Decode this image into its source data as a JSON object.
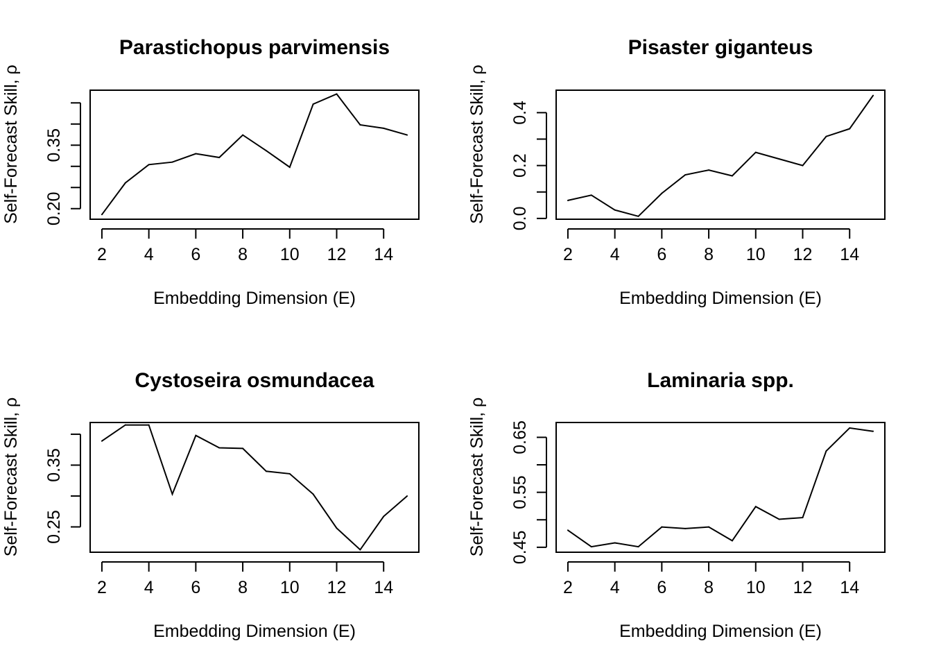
{
  "chart_data": [
    {
      "type": "line",
      "title": "Parastichopus parvimensis",
      "xlabel": "Embedding Dimension (E)",
      "ylabel": "Self-Forecast Skill, ρ",
      "x": [
        2,
        3,
        4,
        5,
        6,
        7,
        8,
        9,
        10,
        11,
        12,
        13,
        14,
        15
      ],
      "y": [
        0.186,
        0.261,
        0.304,
        0.31,
        0.33,
        0.321,
        0.374,
        0.337,
        0.298,
        0.447,
        0.471,
        0.398,
        0.39,
        0.374
      ],
      "xlim": [
        1.5,
        15.5
      ],
      "ylim": [
        0.175,
        0.48
      ],
      "xticks": [
        2,
        4,
        6,
        8,
        10,
        12,
        14
      ],
      "yticks": [
        0.2,
        0.25,
        0.3,
        0.35,
        0.4,
        0.45
      ],
      "ytick_labels": [
        "0.20",
        "",
        "",
        "0.35",
        "",
        ""
      ],
      "xtick_labels": [
        "2",
        "4",
        "6",
        "8",
        "10",
        "12",
        "14"
      ]
    },
    {
      "type": "line",
      "title": "Pisaster giganteus",
      "xlabel": "Embedding Dimension (E)",
      "ylabel": "Self-Forecast Skill, ρ",
      "x": [
        2,
        3,
        4,
        5,
        6,
        7,
        8,
        9,
        10,
        11,
        12,
        13,
        14,
        15
      ],
      "y": [
        0.068,
        0.088,
        0.032,
        0.008,
        0.095,
        0.165,
        0.183,
        0.161,
        0.25,
        0.225,
        0.2,
        0.31,
        0.339,
        0.465
      ],
      "xlim": [
        1.5,
        15.5
      ],
      "ylim": [
        -0.003,
        0.485
      ],
      "xticks": [
        2,
        4,
        6,
        8,
        10,
        12,
        14
      ],
      "yticks": [
        0.0,
        0.1,
        0.2,
        0.3,
        0.4
      ],
      "ytick_labels": [
        "0.0",
        "",
        "0.2",
        "",
        "0.4"
      ],
      "xtick_labels": [
        "2",
        "4",
        "6",
        "8",
        "10",
        "12",
        "14"
      ]
    },
    {
      "type": "line",
      "title": "Cystoseira osmundacea",
      "xlabel": "Embedding Dimension (E)",
      "ylabel": "Self-Forecast Skill, ρ",
      "x": [
        2,
        3,
        4,
        5,
        6,
        7,
        8,
        9,
        10,
        11,
        12,
        13,
        14,
        15
      ],
      "y": [
        0.389,
        0.415,
        0.415,
        0.303,
        0.398,
        0.378,
        0.377,
        0.34,
        0.336,
        0.303,
        0.248,
        0.213,
        0.267,
        0.3
      ],
      "xlim": [
        1.5,
        15.5
      ],
      "ylim": [
        0.209,
        0.419
      ],
      "xticks": [
        2,
        4,
        6,
        8,
        10,
        12,
        14
      ],
      "yticks": [
        0.25,
        0.3,
        0.35,
        0.4
      ],
      "ytick_labels": [
        "0.25",
        "",
        "0.35",
        ""
      ],
      "xtick_labels": [
        "2",
        "4",
        "6",
        "8",
        "10",
        "12",
        "14"
      ]
    },
    {
      "type": "line",
      "title": "Laminaria spp.",
      "xlabel": "Embedding Dimension (E)",
      "ylabel": "Self-Forecast Skill, ρ",
      "x": [
        2,
        3,
        4,
        5,
        6,
        7,
        8,
        9,
        10,
        11,
        12,
        13,
        14,
        15
      ],
      "y": [
        0.481,
        0.451,
        0.458,
        0.451,
        0.487,
        0.484,
        0.487,
        0.462,
        0.524,
        0.501,
        0.504,
        0.625,
        0.667,
        0.661
      ],
      "xlim": [
        1.5,
        15.5
      ],
      "ylim": [
        0.441,
        0.677
      ],
      "xticks": [
        2,
        4,
        6,
        8,
        10,
        12,
        14
      ],
      "yticks": [
        0.45,
        0.5,
        0.55,
        0.6,
        0.65
      ],
      "ytick_labels": [
        "0.45",
        "",
        "0.55",
        "",
        "0.65"
      ],
      "xtick_labels": [
        "2",
        "4",
        "6",
        "8",
        "10",
        "12",
        "14"
      ]
    }
  ]
}
